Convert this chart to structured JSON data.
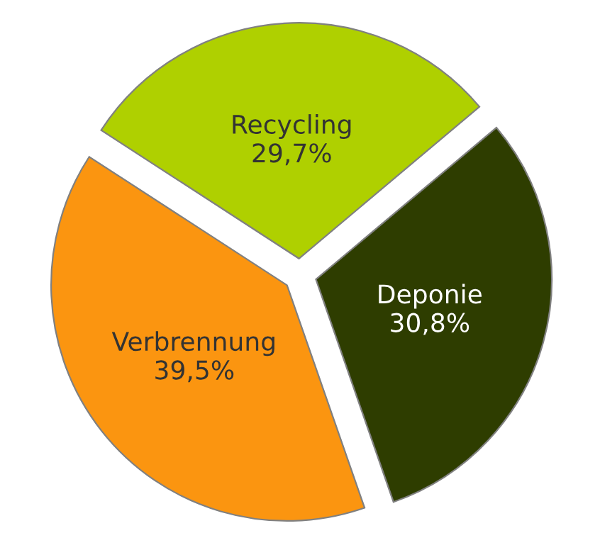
{
  "chart_data": {
    "type": "pie",
    "categories": [
      "Recycling",
      "Deponie",
      "Verbrennung"
    ],
    "values": [
      29.7,
      30.8,
      39.5
    ],
    "value_labels": [
      "29,7%",
      "30,8%",
      "39,5%"
    ],
    "colors": [
      "#afd000",
      "#2e3d00",
      "#fb9510"
    ]
  }
}
